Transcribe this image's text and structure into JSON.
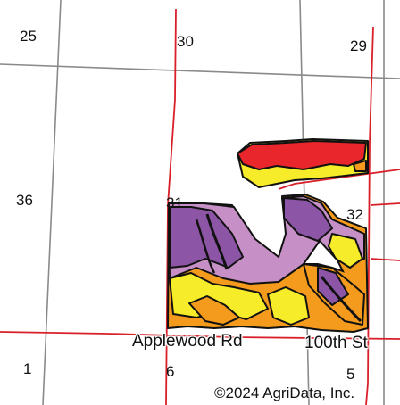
{
  "map": {
    "sections": [
      "25",
      "30",
      "29",
      "36",
      "31",
      "32",
      "1",
      "6",
      "5"
    ],
    "roads": {
      "applewood": "Applewood Rd",
      "hundredth": "100th St"
    },
    "copyright": "©2024 AgriData, Inc.",
    "colors": {
      "red": "#e8262b",
      "orange": "#f49a1c",
      "yellow": "#f7ec2a",
      "pink": "#c690c6",
      "purple": "#8d55a6",
      "road_line": "#d9202a",
      "section_line": "#8a8a8a",
      "outline": "#111111"
    }
  }
}
